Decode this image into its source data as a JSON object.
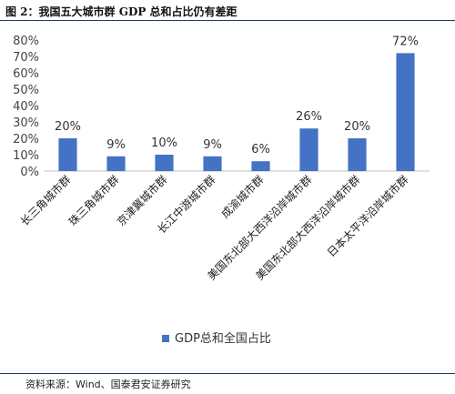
{
  "figure": {
    "title": "图 2：我国五大城市群 GDP 总和占比仍有差距",
    "source": "资料来源：Wind、国泰君安证券研究"
  },
  "chart_data": {
    "type": "bar",
    "categories": [
      "长三角城市群",
      "珠三角城市群",
      "京津冀城市群",
      "长江中游城市群",
      "成渝城市群",
      "美国东北部大西洋沿岸城市群",
      "美国东北部大西洋沿岸城市群",
      "日本太平洋沿岸城市群"
    ],
    "series": [
      {
        "name": "GDP总和全国占比",
        "values": [
          20,
          9,
          10,
          9,
          6,
          26,
          20,
          72
        ]
      }
    ],
    "data_labels": [
      "20%",
      "9%",
      "10%",
      "9%",
      "6%",
      "26%",
      "20%",
      "72%"
    ],
    "yticks": [
      "0%",
      "10%",
      "20%",
      "30%",
      "40%",
      "50%",
      "60%",
      "70%",
      "80%"
    ],
    "ylim": [
      0,
      80
    ],
    "grid": false,
    "legend_position": "bottom",
    "bar_color": "#4472C4"
  }
}
